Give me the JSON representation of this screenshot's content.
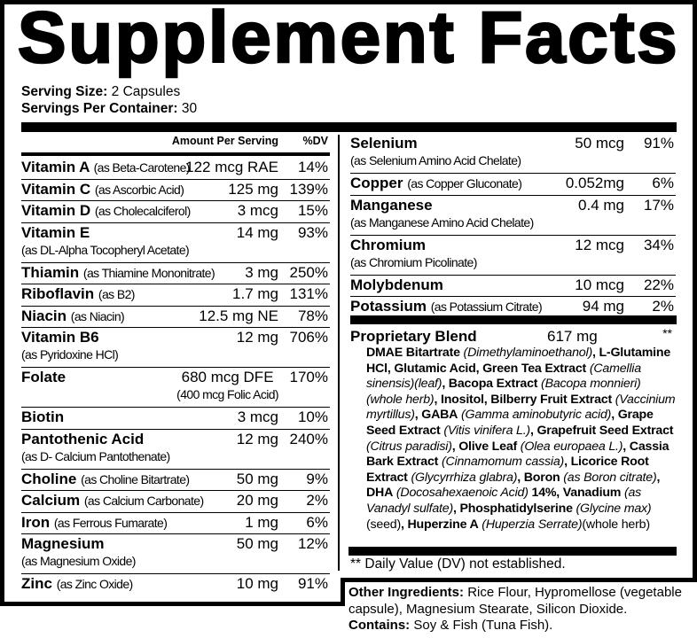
{
  "title": "Supplement Facts",
  "serving": {
    "size_label": "Serving Size:",
    "size_value": "2 Capsules",
    "per_container_label": "Servings Per Container:",
    "per_container_value": "30"
  },
  "header": {
    "amount": "Amount Per Serving",
    "dv": "%DV"
  },
  "left_rows": [
    {
      "name": "Vitamin A",
      "source": "(as Beta-Carotene)",
      "amount": "122 mcg RAE",
      "dv": "14%"
    },
    {
      "name": "Vitamin C",
      "source": "(as Ascorbic Acid)",
      "amount": "125 mg",
      "dv": "139%"
    },
    {
      "name": "Vitamin D",
      "source": "(as Cholecalciferol)",
      "amount": "3 mcg",
      "dv": "15%"
    },
    {
      "name": "Vitamin E",
      "sub": "(as DL-Alpha Tocopheryl Acetate)",
      "amount": "14 mg",
      "dv": "93%"
    },
    {
      "name": "Thiamin",
      "source": "(as Thiamine Mononitrate)",
      "amount": "3 mg",
      "dv": "250%"
    },
    {
      "name": "Riboflavin",
      "source": "(as B2)",
      "amount": "1.7 mg",
      "dv": "131%"
    },
    {
      "name": "Niacin",
      "source": "(as Niacin)",
      "amount": "12.5 mg NE",
      "dv": "78%"
    },
    {
      "name": "Vitamin B6",
      "sub": "(as Pyridoxine HCl)",
      "amount": "12 mg",
      "dv": "706%"
    },
    {
      "name": "Folate",
      "amount": "680 mcg DFE",
      "amount2": "(400 mcg Folic Acid)",
      "dv": "170%"
    },
    {
      "name": "Biotin",
      "amount": "3 mcg",
      "dv": "10%"
    },
    {
      "name": "Pantothenic Acid",
      "sub": "(as D- Calcium Pantothenate)",
      "amount": "12 mg",
      "dv": "240%"
    },
    {
      "name": "Choline",
      "source": "(as Choline Bitartrate)",
      "amount": "50 mg",
      "dv": "9%"
    },
    {
      "name": "Calcium",
      "source": "(as Calcium Carbonate)",
      "amount": "20 mg",
      "dv": "2%"
    },
    {
      "name": "Iron",
      "source": "(as Ferrous Fumarate)",
      "amount": "1 mg",
      "dv": "6%"
    },
    {
      "name": "Magnesium",
      "sub": "(as Magnesium Oxide)",
      "amount": "50 mg",
      "dv": "12%"
    },
    {
      "name": "Zinc",
      "source": "(as Zinc Oxide)",
      "amount": "10 mg",
      "dv": "91%"
    }
  ],
  "right_rows": [
    {
      "name": "Selenium",
      "sub": "(as Selenium Amino Acid Chelate)",
      "amount": "50 mcg",
      "dv": "91%"
    },
    {
      "name": "Copper",
      "source": "(as Copper Gluconate)",
      "amount": "0.052mg",
      "dv": "6%"
    },
    {
      "name": "Manganese",
      "sub": "(as Manganese Amino Acid Chelate)",
      "amount": "0.4 mg",
      "dv": "17%"
    },
    {
      "name": "Chromium",
      "sub": "(as Chromium Picolinate)",
      "amount": "12 mcg",
      "dv": "34%"
    },
    {
      "name": "Molybdenum",
      "amount": "10 mcg",
      "dv": "22%"
    },
    {
      "name": "Potassium",
      "source": "(as Potassium Citrate)",
      "amount": "94 mg",
      "dv": "2%"
    }
  ],
  "blend": {
    "name": "Proprietary Blend",
    "amount": "617 mg",
    "dv": "**",
    "ingredients": [
      {
        "b": "DMAE Bitartrate",
        "i": "(Dimethylaminoethanol)"
      },
      {
        "b": "L-Glutamine HCl"
      },
      {
        "b": "Glutamic Acid"
      },
      {
        "b": "Green Tea Extract",
        "i": "(Camellia sinensis)(leaf)"
      },
      {
        "b": "Bacopa Extract",
        "i": "(Bacopa monnieri)(whole herb)"
      },
      {
        "b": "Inositol"
      },
      {
        "b": "Bilberry Fruit Extract",
        "i": "(Vaccinium myrtillus)"
      },
      {
        "b": "GABA",
        "i": "(Gamma aminobutyric acid)"
      },
      {
        "b": "Grape Seed Extract",
        "i": "(Vitis vinifera L.)"
      },
      {
        "b": "Grapefruit Seed Extract",
        "i": "(Citrus paradisi)"
      },
      {
        "b": "Olive Leaf",
        "i": "(Olea europaea L.)"
      },
      {
        "b": "Cassia Bark Extract",
        "i": "(Cinnamomum cassia)"
      },
      {
        "b": "Licorice Root Extract",
        "i": "(Glycyrrhiza glabra)"
      },
      {
        "b": "Boron",
        "i": "(as Boron citrate)"
      },
      {
        "b": "DHA",
        "i": "(Docosahexaenoic Acid)",
        "b2": "14%"
      },
      {
        "b": "Vanadium",
        "i": "(as Vanadyl sulfate)"
      },
      {
        "b": "Phosphatidylserine",
        "i": "(Glycine max)",
        "n": "(seed)"
      },
      {
        "b": "Huperzine A",
        "i": "(Huperzia Serrate)",
        "n": "(whole herb)"
      }
    ]
  },
  "footnote": "** Daily Value (DV) not established.",
  "other": {
    "ingredients_label": "Other Ingredients:",
    "ingredients_value": "Rice Flour, Hypromellose (vegetable capsule), Magnesium Stearate, Silicon Dioxide.",
    "contains_label": "Contains:",
    "contains_value": "Soy & Fish (Tuna Fish)."
  }
}
